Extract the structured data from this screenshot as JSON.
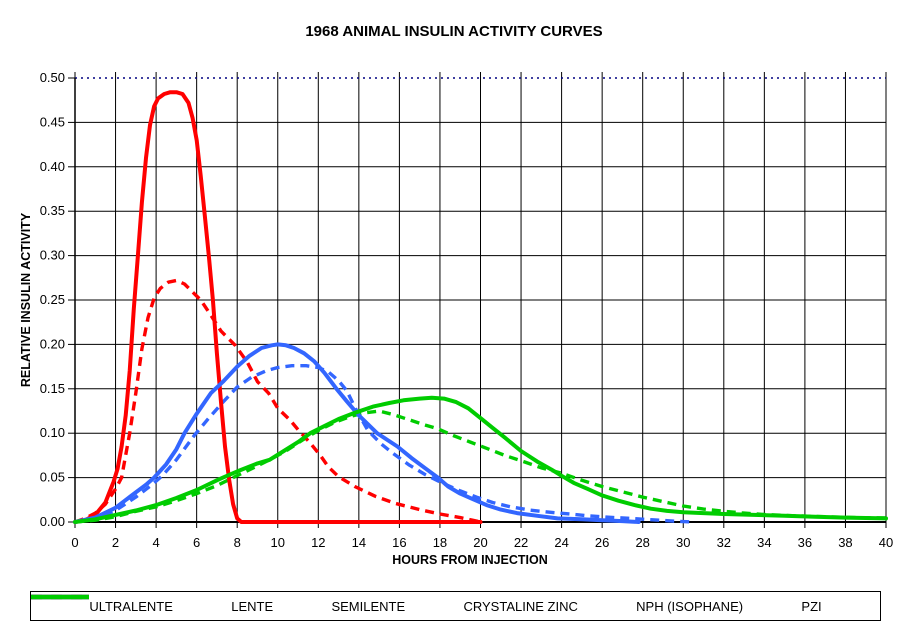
{
  "page": {
    "background": "#FFFFFF"
  },
  "chart_data": {
    "type": "line",
    "title": "1968 ANIMAL INSULIN ACTIVITY CURVES",
    "xlabel": "HOURS FROM INJECTION",
    "ylabel": "RELATIVE INSULIN ACTIVITY",
    "xlim": [
      0,
      40
    ],
    "ylim": [
      0,
      0.5
    ],
    "x_ticks": [
      0,
      2,
      4,
      6,
      8,
      10,
      12,
      14,
      16,
      18,
      20,
      22,
      24,
      26,
      28,
      30,
      32,
      34,
      36,
      38,
      40
    ],
    "y_ticks": [
      "0.00",
      "0.05",
      "0.10",
      "0.15",
      "0.20",
      "0.25",
      "0.30",
      "0.35",
      "0.40",
      "0.45",
      "0.50"
    ],
    "grid": true,
    "grid_color": "#000000",
    "top_boundary": {
      "style": "dotted",
      "color": "#000080"
    },
    "legend_position": "bottom",
    "series": [
      {
        "name": "ULTRALENTE",
        "color": "#00CC00",
        "style": "dashed",
        "points": [
          [
            0,
            0
          ],
          [
            1,
            0.002
          ],
          [
            2,
            0.006
          ],
          [
            3,
            0.012
          ],
          [
            4,
            0.017
          ],
          [
            5,
            0.024
          ],
          [
            6,
            0.032
          ],
          [
            7,
            0.041
          ],
          [
            7.8,
            0.05
          ],
          [
            8.8,
            0.061
          ],
          [
            9.6,
            0.07
          ],
          [
            10.4,
            0.08
          ],
          [
            11.2,
            0.092
          ],
          [
            12,
            0.103
          ],
          [
            12.8,
            0.112
          ],
          [
            13.6,
            0.119
          ],
          [
            14.3,
            0.123
          ],
          [
            15,
            0.125
          ],
          [
            15.7,
            0.121
          ],
          [
            16.5,
            0.115
          ],
          [
            17.3,
            0.109
          ],
          [
            17.9,
            0.105
          ],
          [
            18.7,
            0.097
          ],
          [
            19.5,
            0.09
          ],
          [
            20.3,
            0.083
          ],
          [
            21.2,
            0.075
          ],
          [
            22,
            0.069
          ],
          [
            23,
            0.061
          ],
          [
            24,
            0.055
          ],
          [
            25,
            0.047
          ],
          [
            26,
            0.04
          ],
          [
            27,
            0.034
          ],
          [
            28,
            0.028
          ],
          [
            29,
            0.023
          ],
          [
            30,
            0.018
          ],
          [
            31,
            0.0145
          ],
          [
            32,
            0.012
          ],
          [
            33,
            0.01
          ],
          [
            34,
            0.0085
          ],
          [
            35.5,
            0.007
          ],
          [
            37,
            0.006
          ],
          [
            38.5,
            0.005
          ],
          [
            40,
            0.0045
          ]
        ]
      },
      {
        "name": "LENTE",
        "color": "#3366FF",
        "style": "dashed",
        "points": [
          [
            0,
            0
          ],
          [
            1,
            0.004
          ],
          [
            2,
            0.013
          ],
          [
            3,
            0.028
          ],
          [
            3.8,
            0.042
          ],
          [
            4.3,
            0.052
          ],
          [
            5,
            0.07
          ],
          [
            5.9,
            0.098
          ],
          [
            6.6,
            0.117
          ],
          [
            7.3,
            0.135
          ],
          [
            8,
            0.152
          ],
          [
            8.7,
            0.163
          ],
          [
            9.4,
            0.17
          ],
          [
            10,
            0.174
          ],
          [
            10.7,
            0.176
          ],
          [
            11.4,
            0.176
          ],
          [
            12,
            0.174
          ],
          [
            12.5,
            0.169
          ],
          [
            13,
            0.159
          ],
          [
            13.4,
            0.148
          ],
          [
            13.9,
            0.125
          ],
          [
            14.45,
            0.103
          ],
          [
            15.1,
            0.088
          ],
          [
            15.7,
            0.077
          ],
          [
            16.5,
            0.064
          ],
          [
            17.3,
            0.053
          ],
          [
            18.2,
            0.043
          ],
          [
            19,
            0.035
          ],
          [
            19.8,
            0.028
          ],
          [
            20.6,
            0.022
          ],
          [
            21.5,
            0.017
          ],
          [
            22.4,
            0.0135
          ],
          [
            23.4,
            0.011
          ],
          [
            24.4,
            0.009
          ],
          [
            25.3,
            0.007
          ],
          [
            26.2,
            0.0055
          ],
          [
            27.4,
            0.004
          ],
          [
            28.5,
            0.0025
          ],
          [
            29.5,
            0.001
          ],
          [
            30.5,
            0
          ]
        ]
      },
      {
        "name": "SEMILENTE",
        "color": "#FF0000",
        "style": "dashed",
        "points": [
          [
            0,
            0
          ],
          [
            0.5,
            0.004
          ],
          [
            1,
            0.01
          ],
          [
            1.5,
            0.02
          ],
          [
            2,
            0.037
          ],
          [
            2.3,
            0.05
          ],
          [
            2.7,
            0.1
          ],
          [
            3,
            0.145
          ],
          [
            3.3,
            0.195
          ],
          [
            3.6,
            0.23
          ],
          [
            3.9,
            0.252
          ],
          [
            4.2,
            0.263
          ],
          [
            4.6,
            0.27
          ],
          [
            5,
            0.272
          ],
          [
            5.4,
            0.268
          ],
          [
            5.8,
            0.259
          ],
          [
            6.2,
            0.25
          ],
          [
            6.7,
            0.233
          ],
          [
            7.2,
            0.215
          ],
          [
            7.9,
            0.199
          ],
          [
            8.5,
            0.18
          ],
          [
            9,
            0.158
          ],
          [
            9.55,
            0.145
          ],
          [
            10,
            0.128
          ],
          [
            10.6,
            0.115
          ],
          [
            11,
            0.104
          ],
          [
            11.6,
            0.089
          ],
          [
            12.1,
            0.075
          ],
          [
            12.5,
            0.062
          ],
          [
            13,
            0.051
          ],
          [
            13.8,
            0.04
          ],
          [
            14.8,
            0.029
          ],
          [
            15.8,
            0.021
          ],
          [
            17,
            0.014
          ],
          [
            18,
            0.009
          ],
          [
            19,
            0.005
          ],
          [
            19.6,
            0.002
          ],
          [
            20,
            0
          ]
        ]
      },
      {
        "name": "CRYSTALINE ZINC",
        "color": "#FF0000",
        "style": "solid",
        "points": [
          [
            0,
            0
          ],
          [
            0.5,
            0.002
          ],
          [
            1,
            0.008
          ],
          [
            1.5,
            0.022
          ],
          [
            1.9,
            0.045
          ],
          [
            2.1,
            0.06
          ],
          [
            2.3,
            0.085
          ],
          [
            2.5,
            0.12
          ],
          [
            2.7,
            0.17
          ],
          [
            2.9,
            0.24
          ],
          [
            3.1,
            0.3
          ],
          [
            3.3,
            0.36
          ],
          [
            3.5,
            0.41
          ],
          [
            3.7,
            0.447
          ],
          [
            3.9,
            0.468
          ],
          [
            4.1,
            0.477
          ],
          [
            4.4,
            0.482
          ],
          [
            4.7,
            0.484
          ],
          [
            5,
            0.484
          ],
          [
            5.3,
            0.482
          ],
          [
            5.6,
            0.472
          ],
          [
            5.8,
            0.455
          ],
          [
            6,
            0.43
          ],
          [
            6.2,
            0.39
          ],
          [
            6.4,
            0.345
          ],
          [
            6.6,
            0.3
          ],
          [
            6.8,
            0.25
          ],
          [
            7,
            0.19
          ],
          [
            7.2,
            0.135
          ],
          [
            7.4,
            0.085
          ],
          [
            7.6,
            0.048
          ],
          [
            7.8,
            0.02
          ],
          [
            8,
            0.004
          ],
          [
            8.2,
            0
          ],
          [
            20,
            0
          ]
        ]
      },
      {
        "name": "NPH (ISOPHANE)",
        "color": "#3366FF",
        "style": "solid",
        "points": [
          [
            0,
            0
          ],
          [
            1,
            0.005
          ],
          [
            2,
            0.016
          ],
          [
            2.8,
            0.03
          ],
          [
            3.5,
            0.042
          ],
          [
            3.9,
            0.05
          ],
          [
            4.5,
            0.065
          ],
          [
            5,
            0.082
          ],
          [
            5.4,
            0.1
          ],
          [
            6,
            0.122
          ],
          [
            6.7,
            0.145
          ],
          [
            7.3,
            0.158
          ],
          [
            8,
            0.175
          ],
          [
            8.6,
            0.187
          ],
          [
            9.2,
            0.196
          ],
          [
            9.7,
            0.199
          ],
          [
            10,
            0.2
          ],
          [
            10.4,
            0.199
          ],
          [
            10.8,
            0.196
          ],
          [
            11.3,
            0.19
          ],
          [
            11.8,
            0.181
          ],
          [
            12.3,
            0.168
          ],
          [
            12.9,
            0.15
          ],
          [
            13.4,
            0.136
          ],
          [
            14,
            0.12
          ],
          [
            14.9,
            0.1
          ],
          [
            15.9,
            0.085
          ],
          [
            16.6,
            0.072
          ],
          [
            17.3,
            0.06
          ],
          [
            17.9,
            0.05
          ],
          [
            18.4,
            0.04
          ],
          [
            19,
            0.032
          ],
          [
            19.6,
            0.026
          ],
          [
            20.3,
            0.019
          ],
          [
            21,
            0.014
          ],
          [
            21.8,
            0.01
          ],
          [
            22.8,
            0.007
          ],
          [
            23.8,
            0.004
          ],
          [
            25,
            0.003
          ],
          [
            26,
            0.002
          ],
          [
            27,
            0.001
          ],
          [
            27.8,
            0
          ]
        ]
      },
      {
        "name": "PZI",
        "color": "#00CC00",
        "style": "solid",
        "points": [
          [
            0,
            0
          ],
          [
            1,
            0.003
          ],
          [
            2,
            0.008
          ],
          [
            3,
            0.013
          ],
          [
            4,
            0.019
          ],
          [
            5,
            0.027
          ],
          [
            6,
            0.036
          ],
          [
            7,
            0.047
          ],
          [
            7.3,
            0.05
          ],
          [
            8,
            0.057
          ],
          [
            9,
            0.066
          ],
          [
            9.6,
            0.07
          ],
          [
            10.3,
            0.08
          ],
          [
            11,
            0.09
          ],
          [
            11.6,
            0.1
          ],
          [
            12.3,
            0.108
          ],
          [
            13,
            0.116
          ],
          [
            13.8,
            0.123
          ],
          [
            14.7,
            0.13
          ],
          [
            15.5,
            0.134
          ],
          [
            16.2,
            0.137
          ],
          [
            17,
            0.139
          ],
          [
            17.6,
            0.14
          ],
          [
            18.2,
            0.139
          ],
          [
            18.8,
            0.135
          ],
          [
            19.4,
            0.128
          ],
          [
            20,
            0.117
          ],
          [
            20.6,
            0.106
          ],
          [
            21.2,
            0.095
          ],
          [
            22,
            0.08
          ],
          [
            22.8,
            0.068
          ],
          [
            23.5,
            0.059
          ],
          [
            24,
            0.052
          ],
          [
            24.6,
            0.044
          ],
          [
            25.3,
            0.037
          ],
          [
            26,
            0.03
          ],
          [
            26.8,
            0.024
          ],
          [
            27.6,
            0.019
          ],
          [
            28.4,
            0.015
          ],
          [
            29.2,
            0.0125
          ],
          [
            30,
            0.011
          ],
          [
            31,
            0.01
          ],
          [
            32,
            0.009
          ],
          [
            33.5,
            0.008
          ],
          [
            35,
            0.007
          ],
          [
            36.5,
            0.006
          ],
          [
            38,
            0.005
          ],
          [
            39,
            0.0045
          ],
          [
            40,
            0.004
          ]
        ]
      }
    ]
  }
}
